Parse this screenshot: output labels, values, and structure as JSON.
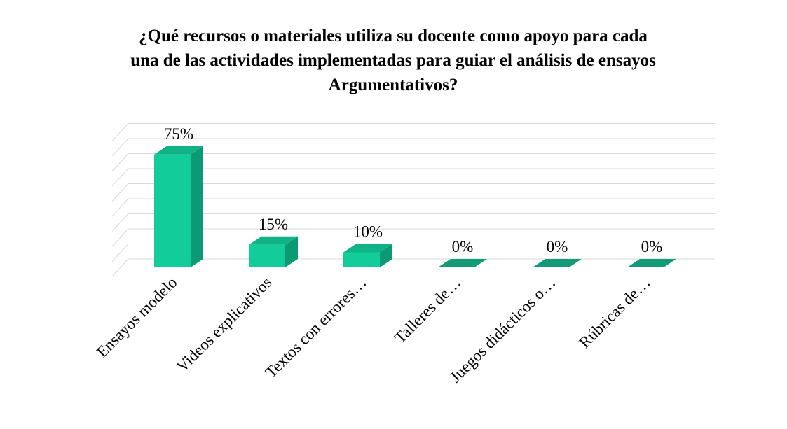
{
  "chart_data": {
    "type": "bar3d",
    "title": "¿Qué recursos o materiales utiliza su docente como apoyo para cada una de las actividades implementadas para guiar el análisis de ensayos Argumentativos?",
    "categories": [
      "Ensayos modelo",
      "Videos explicativos",
      "Textos con errores…",
      "Talleres de…",
      "Juegos didácticos o…",
      "Rúbricas de…"
    ],
    "values": [
      75,
      15,
      10,
      0,
      0,
      0
    ],
    "value_labels": [
      "75%",
      "15%",
      "10%",
      "0%",
      "0%",
      "0%"
    ],
    "ylim": [
      0,
      90
    ],
    "yticks": [
      0,
      10,
      20,
      30,
      40,
      50,
      60,
      70,
      80,
      90
    ],
    "color": "#12cc99",
    "grid": true
  }
}
